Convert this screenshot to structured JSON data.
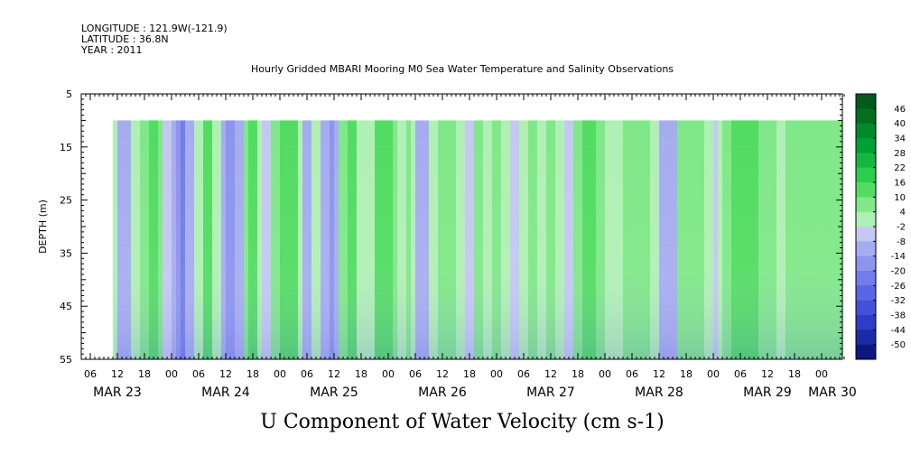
{
  "header": {
    "longitude": "LONGITUDE : 121.9W(-121.9)",
    "latitude": "LATITUDE : 36.8N",
    "year": "YEAR : 2011"
  },
  "chart_data": {
    "type": "heatmap",
    "title": "Hourly Gridded MBARI Mooring M0 Sea Water Temperature and Salinity Observations",
    "xlabel": "U Component of Water Velocity (cm s-1)",
    "ylabel": "DEPTH (m)",
    "y_range": [
      5,
      55
    ],
    "y_ticks": [
      5,
      15,
      25,
      35,
      45,
      55
    ],
    "data_depth_range": [
      10,
      55
    ],
    "x_start": "MAR 23 04:00",
    "x_end": "MAR 30 05:00",
    "data_start": "MAR 23 11:00",
    "x_hour_ticks": [
      "06",
      "12",
      "18",
      "00",
      "06",
      "12",
      "18",
      "00",
      "06",
      "12",
      "18",
      "00",
      "06",
      "12",
      "18",
      "00",
      "06",
      "12",
      "18",
      "00",
      "06",
      "12",
      "18",
      "00",
      "06",
      "12",
      "18",
      "00"
    ],
    "date_labels": [
      "MAR 23",
      "MAR 24",
      "MAR 25",
      "MAR 26",
      "MAR 27",
      "MAR 28",
      "MAR 29",
      "MAR 30"
    ],
    "colorbar_labels": [
      "46",
      "40",
      "34",
      "28",
      "22",
      "16",
      "10",
      "4",
      "-2",
      "-8",
      "-14",
      "-20",
      "-26",
      "-32",
      "-38",
      "-44",
      "-50"
    ],
    "colorbar_colors": [
      "#005a1e",
      "#00701f",
      "#008a2a",
      "#00a033",
      "#14b83e",
      "#2ecc4c",
      "#52dc62",
      "#80e888",
      "#b0f0b4",
      "#c4c8f2",
      "#a6acf0",
      "#8c94ee",
      "#727cea",
      "#5a64e4",
      "#4450d8",
      "#2e3cc8",
      "#1c2aa8",
      "#0c1880"
    ],
    "velocity_profile": [
      {
        "time": "MAR 23 11:00",
        "u": 2
      },
      {
        "time": "MAR 23 12:00",
        "u": -7
      },
      {
        "time": "MAR 23 13:00",
        "u": -9
      },
      {
        "time": "MAR 23 14:00",
        "u": -8
      },
      {
        "time": "MAR 23 15:00",
        "u": 3
      },
      {
        "time": "MAR 23 17:00",
        "u": 12
      },
      {
        "time": "MAR 23 19:00",
        "u": 16
      },
      {
        "time": "MAR 23 21:00",
        "u": 8
      },
      {
        "time": "MAR 23 22:00",
        "u": -3
      },
      {
        "time": "MAR 24 00:00",
        "u": -6
      },
      {
        "time": "MAR 24 01:00",
        "u": -13
      },
      {
        "time": "MAR 24 02:00",
        "u": -16
      },
      {
        "time": "MAR 24 03:00",
        "u": -10
      },
      {
        "time": "MAR 24 05:00",
        "u": 6
      },
      {
        "time": "MAR 24 07:00",
        "u": 14
      },
      {
        "time": "MAR 24 09:00",
        "u": 6
      },
      {
        "time": "MAR 24 11:00",
        "u": -9
      },
      {
        "time": "MAR 24 12:00",
        "u": -11
      },
      {
        "time": "MAR 24 14:00",
        "u": -6
      },
      {
        "time": "MAR 24 16:00",
        "u": 8
      },
      {
        "time": "MAR 24 17:00",
        "u": 13
      },
      {
        "time": "MAR 24 19:00",
        "u": 5
      },
      {
        "time": "MAR 24 20:00",
        "u": -3
      },
      {
        "time": "MAR 24 22:00",
        "u": 8
      },
      {
        "time": "MAR 25 00:00",
        "u": 14
      },
      {
        "time": "MAR 25 02:00",
        "u": 16
      },
      {
        "time": "MAR 25 04:00",
        "u": 6
      },
      {
        "time": "MAR 25 05:00",
        "u": -6
      },
      {
        "time": "MAR 25 07:00",
        "u": 4
      },
      {
        "time": "MAR 25 09:00",
        "u": -7
      },
      {
        "time": "MAR 25 10:00",
        "u": -9
      },
      {
        "time": "MAR 25 11:00",
        "u": -11
      },
      {
        "time": "MAR 25 12:00",
        "u": -6
      },
      {
        "time": "MAR 25 13:00",
        "u": 8
      },
      {
        "time": "MAR 25 15:00",
        "u": 14
      },
      {
        "time": "MAR 25 17:00",
        "u": 6
      },
      {
        "time": "MAR 25 19:00",
        "u": 2
      },
      {
        "time": "MAR 25 21:00",
        "u": 14
      },
      {
        "time": "MAR 25 23:00",
        "u": 16
      },
      {
        "time": "MAR 26 01:00",
        "u": 8
      },
      {
        "time": "MAR 26 02:00",
        "u": 2
      },
      {
        "time": "MAR 26 04:00",
        "u": 10
      },
      {
        "time": "MAR 26 05:00",
        "u": 4
      },
      {
        "time": "MAR 26 06:00",
        "u": -6
      },
      {
        "time": "MAR 26 07:00",
        "u": -8
      },
      {
        "time": "MAR 26 09:00",
        "u": 5
      },
      {
        "time": "MAR 26 11:00",
        "u": 12
      },
      {
        "time": "MAR 26 13:00",
        "u": 8
      },
      {
        "time": "MAR 26 15:00",
        "u": 3
      },
      {
        "time": "MAR 26 17:00",
        "u": -2
      },
      {
        "time": "MAR 26 19:00",
        "u": 10
      },
      {
        "time": "MAR 26 21:00",
        "u": 2
      },
      {
        "time": "MAR 26 23:00",
        "u": 12
      },
      {
        "time": "MAR 27 01:00",
        "u": 4
      },
      {
        "time": "MAR 27 03:00",
        "u": -3
      },
      {
        "time": "MAR 27 05:00",
        "u": 6
      },
      {
        "time": "MAR 27 07:00",
        "u": 12
      },
      {
        "time": "MAR 27 09:00",
        "u": 6
      },
      {
        "time": "MAR 27 11:00",
        "u": 10
      },
      {
        "time": "MAR 27 13:00",
        "u": 4
      },
      {
        "time": "MAR 27 15:00",
        "u": -3
      },
      {
        "time": "MAR 27 17:00",
        "u": 9
      },
      {
        "time": "MAR 27 19:00",
        "u": 13
      },
      {
        "time": "MAR 27 20:00",
        "u": 14
      },
      {
        "time": "MAR 27 22:00",
        "u": 10
      },
      {
        "time": "MAR 28 00:00",
        "u": 4
      },
      {
        "time": "MAR 28 02:00",
        "u": 6
      },
      {
        "time": "MAR 28 04:00",
        "u": 12
      },
      {
        "time": "MAR 28 06:00",
        "u": 8
      },
      {
        "time": "MAR 28 08:00",
        "u": 10
      },
      {
        "time": "MAR 28 10:00",
        "u": 4
      },
      {
        "time": "MAR 28 12:00",
        "u": -5
      },
      {
        "time": "MAR 28 13:00",
        "u": -8
      },
      {
        "time": "MAR 28 14:00",
        "u": -6
      },
      {
        "time": "MAR 28 16:00",
        "u": 8
      },
      {
        "time": "MAR 28 18:00",
        "u": 12
      },
      {
        "time": "MAR 28 20:00",
        "u": 10
      },
      {
        "time": "MAR 28 22:00",
        "u": 5
      },
      {
        "time": "MAR 29 00:00",
        "u": -4
      },
      {
        "time": "MAR 29 01:00",
        "u": 4
      },
      {
        "time": "MAR 29 02:00",
        "u": 12
      },
      {
        "time": "MAR 29 04:00",
        "u": 16
      },
      {
        "time": "MAR 29 06:00",
        "u": 18
      },
      {
        "time": "MAR 29 08:00",
        "u": 16
      },
      {
        "time": "MAR 29 10:00",
        "u": 12
      },
      {
        "time": "MAR 29 12:00",
        "u": 8
      },
      {
        "time": "MAR 29 14:00",
        "u": 6
      },
      {
        "time": "MAR 29 16:00",
        "u": 10
      },
      {
        "time": "MAR 29 18:00",
        "u": 12
      },
      {
        "time": "MAR 29 20:00",
        "u": 8
      },
      {
        "time": "MAR 29 22:00",
        "u": 10
      },
      {
        "time": "MAR 30 00:00",
        "u": 12
      },
      {
        "time": "MAR 30 02:00",
        "u": 8
      },
      {
        "time": "MAR 30 04:00",
        "u": 10
      }
    ]
  }
}
